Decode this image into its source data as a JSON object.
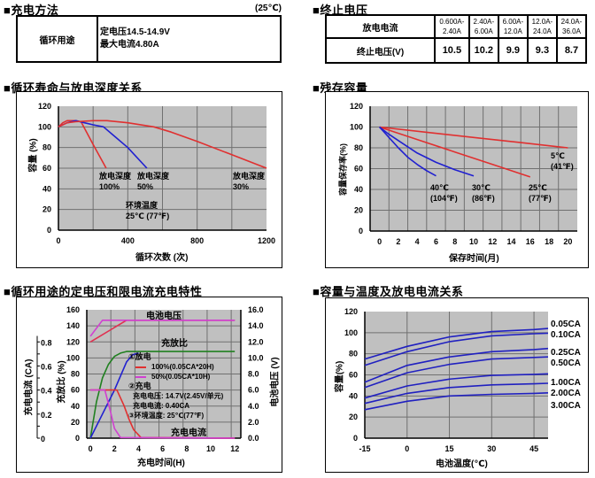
{
  "charge_method": {
    "title": "■充电方法",
    "condition": "(25℃)",
    "row_label": "循环用途",
    "voltage": "定电压14.5-14.9V",
    "current": "最大电流4.80A"
  },
  "cutoff_voltage": {
    "title": "■终止电压",
    "row1_label": "放电电流",
    "row2_label": "终止电压(V)",
    "ranges": [
      [
        "0.600A-",
        "2.40A"
      ],
      [
        "2.40A-",
        "6.00A"
      ],
      [
        "6.00A-",
        "12.0A"
      ],
      [
        "12.0A-",
        "24.0A"
      ],
      [
        "24.0A-",
        "36.0A"
      ]
    ],
    "values": [
      "10.5",
      "10.2",
      "9.9",
      "9.3",
      "8.7"
    ]
  },
  "chart_data": [
    {
      "id": "cycle",
      "type": "line",
      "title": "■循环寿命与放电深度关系",
      "xlabel": "循环次数 (次)",
      "ylabel": "容量 (%)",
      "xlim": [
        0,
        1200
      ],
      "ylim": [
        0,
        120
      ],
      "xgrid": [
        200,
        400,
        600,
        800,
        1000
      ],
      "ygrid": [
        20,
        40,
        60,
        80,
        100
      ],
      "xticks": [
        0,
        400,
        800,
        1200
      ],
      "yticks": [
        0,
        20,
        40,
        60,
        80,
        100,
        120
      ],
      "grid": true,
      "series": [
        {
          "name": "放电深度 100%",
          "color": "#e03030",
          "points": [
            [
              0,
              100
            ],
            [
              25,
              104
            ],
            [
              50,
              106
            ],
            [
              100,
              106
            ],
            [
              130,
              105
            ],
            [
              200,
              83
            ],
            [
              275,
              60
            ]
          ]
        },
        {
          "name": "放电深度 50%",
          "color": "#2020d0",
          "points": [
            [
              0,
              100
            ],
            [
              50,
              104
            ],
            [
              100,
              106
            ],
            [
              150,
              104
            ],
            [
              200,
              102
            ],
            [
              260,
              100
            ],
            [
              330,
              90
            ],
            [
              400,
              80
            ],
            [
              510,
              60
            ]
          ]
        },
        {
          "name": "放电深度 30%",
          "color": "#e03030",
          "points": [
            [
              0,
              100
            ],
            [
              50,
              104
            ],
            [
              100,
              105
            ],
            [
              200,
              106
            ],
            [
              280,
              106
            ],
            [
              400,
              104
            ],
            [
              550,
              100
            ],
            [
              650,
              95
            ],
            [
              800,
              86
            ],
            [
              1000,
              73
            ],
            [
              1200,
              60
            ]
          ]
        }
      ],
      "annotations": [
        {
          "line1": "放电深度",
          "line2": "100%"
        },
        {
          "line1": "放电深度",
          "line2": "50%"
        },
        {
          "line1": "放电深度",
          "line2": "30%"
        },
        {
          "line1": "环境温度",
          "line2": "25℃ (77℉)"
        }
      ]
    },
    {
      "id": "storage",
      "type": "line",
      "title": "■残存容量",
      "xlabel": "保存时间(月)",
      "ylabel": "容量保存率(%)",
      "xlim": [
        -1,
        21
      ],
      "ylim": [
        0,
        120
      ],
      "xgrid": [
        1,
        3,
        5,
        7,
        9,
        11,
        13,
        15,
        17,
        19
      ],
      "ygrid": [
        20,
        40,
        60,
        80,
        100
      ],
      "xticks": [
        0,
        2,
        4,
        6,
        8,
        10,
        12,
        14,
        16,
        18,
        20
      ],
      "yticks": [
        0,
        20,
        40,
        60,
        80,
        100,
        120
      ],
      "grid": true,
      "series": [
        {
          "name": "5℃ (41℉)",
          "color": "#e03030",
          "points": [
            [
              0,
              100
            ],
            [
              5,
              95
            ],
            [
              10,
              90
            ],
            [
              15,
              85
            ],
            [
              20,
              80
            ]
          ]
        },
        {
          "name": "25℃ (77℉)",
          "color": "#e03030",
          "points": [
            [
              0,
              100
            ],
            [
              4,
              88
            ],
            [
              8,
              76
            ],
            [
              12,
              64
            ],
            [
              16,
              52
            ]
          ]
        },
        {
          "name": "30℃ (86℉)",
          "color": "#2020d0",
          "points": [
            [
              0,
              100
            ],
            [
              1,
              93
            ],
            [
              2,
              87
            ],
            [
              4,
              75
            ],
            [
              6,
              66
            ],
            [
              8,
              59
            ],
            [
              10,
              53
            ]
          ]
        },
        {
          "name": "40℃ (104℉)",
          "color": "#2020d0",
          "points": [
            [
              0,
              100
            ],
            [
              1,
              90
            ],
            [
              2,
              80
            ],
            [
              3,
              71
            ],
            [
              4,
              64
            ],
            [
              5,
              58
            ],
            [
              6,
              53
            ]
          ]
        }
      ],
      "annotations": [
        {
          "line1": "5℃",
          "line2": "(41℉)"
        },
        {
          "line1": "25℃",
          "line2": "(77℉)"
        },
        {
          "line1": "30℃",
          "line2": "(86℉)"
        },
        {
          "line1": "40℃",
          "line2": "(104℉)"
        }
      ]
    },
    {
      "id": "charging",
      "type": "line",
      "title": "■循环用途的定电压和限电流充电特性",
      "xlabel": "充电时间(H)",
      "ylabel": "充放比 (%)",
      "ylabel_right": "电池电压 (V)",
      "ylabel_current": "充电电流 (CA)",
      "xlim": [
        -0.3,
        12.5
      ],
      "ylim": [
        0,
        160
      ],
      "xgrid": [
        1.7,
        3.7,
        5.7,
        7.7,
        9.7,
        11.7
      ],
      "ygrid": [
        20,
        40,
        60,
        80,
        100,
        120,
        140
      ],
      "xticks": [
        0,
        2,
        4,
        6,
        8,
        10,
        12
      ],
      "yticks": [
        0,
        20,
        40,
        60,
        80,
        100,
        120,
        140,
        160
      ],
      "yticks_right": [
        "0.0",
        "2.0",
        "4.0",
        "6.0",
        "8.0",
        "10.0",
        "12.0",
        "14.0",
        "16.0"
      ],
      "yticks_current": [
        "0",
        "0.2",
        "0.4",
        "0.6",
        "0.8"
      ],
      "grid": true,
      "series": [
        {
          "name": "电池电压 100%",
          "axis": "voltage",
          "color": "#e03050",
          "points": [
            [
              0,
              12.0
            ],
            [
              3,
              14.7
            ],
            [
              12,
              14.7
            ]
          ]
        },
        {
          "name": "电池电压 50%",
          "axis": "voltage",
          "color": "#d040d0",
          "points": [
            [
              0,
              12.7
            ],
            [
              1,
              14.7
            ],
            [
              12,
              14.7
            ]
          ]
        },
        {
          "name": "充放比 50%",
          "axis": "ratio",
          "color": "#208020",
          "points": [
            [
              0,
              0
            ],
            [
              0.5,
              45
            ],
            [
              1,
              75
            ],
            [
              1.5,
              92
            ],
            [
              2,
              102
            ],
            [
              2.5,
              106
            ],
            [
              3,
              108
            ],
            [
              12,
              108
            ]
          ]
        },
        {
          "name": "充放比 100%",
          "axis": "ratio",
          "color": "#2020d0",
          "points": [
            [
              0,
              0
            ],
            [
              1,
              30
            ],
            [
              2,
              60
            ],
            [
              3,
              95
            ],
            [
              3.5,
              104
            ],
            [
              4,
              106
            ]
          ]
        },
        {
          "name": "充电电流 100%",
          "axis": "current",
          "color": "#e03030",
          "points": [
            [
              0,
              0.4
            ],
            [
              2.2,
              0.4
            ],
            [
              2.8,
              0.27
            ],
            [
              3.2,
              0.16
            ],
            [
              3.6,
              0.07
            ],
            [
              4.2,
              0.005
            ],
            [
              12,
              0
            ]
          ]
        },
        {
          "name": "充电电流 50%",
          "axis": "current",
          "color": "#d040d0",
          "points": [
            [
              0,
              0.4
            ],
            [
              1.2,
              0.4
            ],
            [
              1.6,
              0.25
            ],
            [
              2,
              0.08
            ],
            [
              2.5,
              0.005
            ],
            [
              12,
              0
            ]
          ]
        }
      ],
      "annotations": {
        "voltage_label": "电池电压",
        "ratio_label": "充放比",
        "current_label": "充电电流",
        "discharge": "①放电",
        "legend_100": "100%(0.05CA*20H)",
        "legend_50": "50%(0.05CA*10H)",
        "charge": "②充电",
        "charge_voltage": "充电电压: 14.7V(2.45V/单元)",
        "charge_current": "充电电流: 0.40CA",
        "ambient": "③环境温度: 25℃(77℉)"
      }
    },
    {
      "id": "temperature",
      "type": "line",
      "title": "■容量与温度及放电电流关系",
      "xlabel": "电池温度(℃)",
      "ylabel": "容量(%)",
      "xlim": [
        -15,
        50
      ],
      "ylim": [
        0,
        120
      ],
      "xgrid": [
        0,
        15,
        30,
        45
      ],
      "ygrid": [
        20,
        40,
        60,
        80,
        100
      ],
      "xticks": [
        -15,
        0,
        15,
        30,
        45
      ],
      "yticks": [
        0,
        20,
        40,
        60,
        80,
        100,
        120
      ],
      "grid": true,
      "series": [
        {
          "name": "0.05CA",
          "color": "#2020c0",
          "points": [
            [
              -15,
              75
            ],
            [
              0,
              87
            ],
            [
              15,
              96
            ],
            [
              30,
              101
            ],
            [
              45,
              103
            ],
            [
              50,
              104
            ]
          ]
        },
        {
          "name": "0.10CA",
          "color": "#2020c0",
          "points": [
            [
              -15,
              69
            ],
            [
              0,
              82
            ],
            [
              15,
              91.5
            ],
            [
              30,
              97
            ],
            [
              45,
              99
            ],
            [
              50,
              99.5
            ]
          ]
        },
        {
          "name": "0.25CA",
          "color": "#2020c0",
          "points": [
            [
              -15,
              53
            ],
            [
              0,
              69
            ],
            [
              15,
              77
            ],
            [
              30,
              82
            ],
            [
              45,
              84
            ],
            [
              50,
              85
            ]
          ]
        },
        {
          "name": "0.50CA",
          "color": "#2020c0",
          "points": [
            [
              -15,
              48
            ],
            [
              0,
              62
            ],
            [
              15,
              70
            ],
            [
              30,
              75
            ],
            [
              45,
              76.5
            ],
            [
              50,
              77
            ]
          ]
        },
        {
          "name": "1.00CA",
          "color": "#2020c0",
          "points": [
            [
              -15,
              38
            ],
            [
              0,
              49.5
            ],
            [
              15,
              56
            ],
            [
              30,
              59.5
            ],
            [
              45,
              60.5
            ],
            [
              50,
              61
            ]
          ]
        },
        {
          "name": "2.00CA",
          "color": "#2020c0",
          "points": [
            [
              -15,
              33
            ],
            [
              0,
              42.5
            ],
            [
              15,
              48
            ],
            [
              30,
              50.5
            ],
            [
              45,
              51.5
            ],
            [
              50,
              52
            ]
          ]
        },
        {
          "name": "3.00CA",
          "color": "#2020c0",
          "points": [
            [
              -15,
              27
            ],
            [
              0,
              35
            ],
            [
              15,
              40
            ],
            [
              30,
              41.5
            ],
            [
              45,
              42.5
            ],
            [
              50,
              43
            ]
          ]
        }
      ]
    }
  ]
}
